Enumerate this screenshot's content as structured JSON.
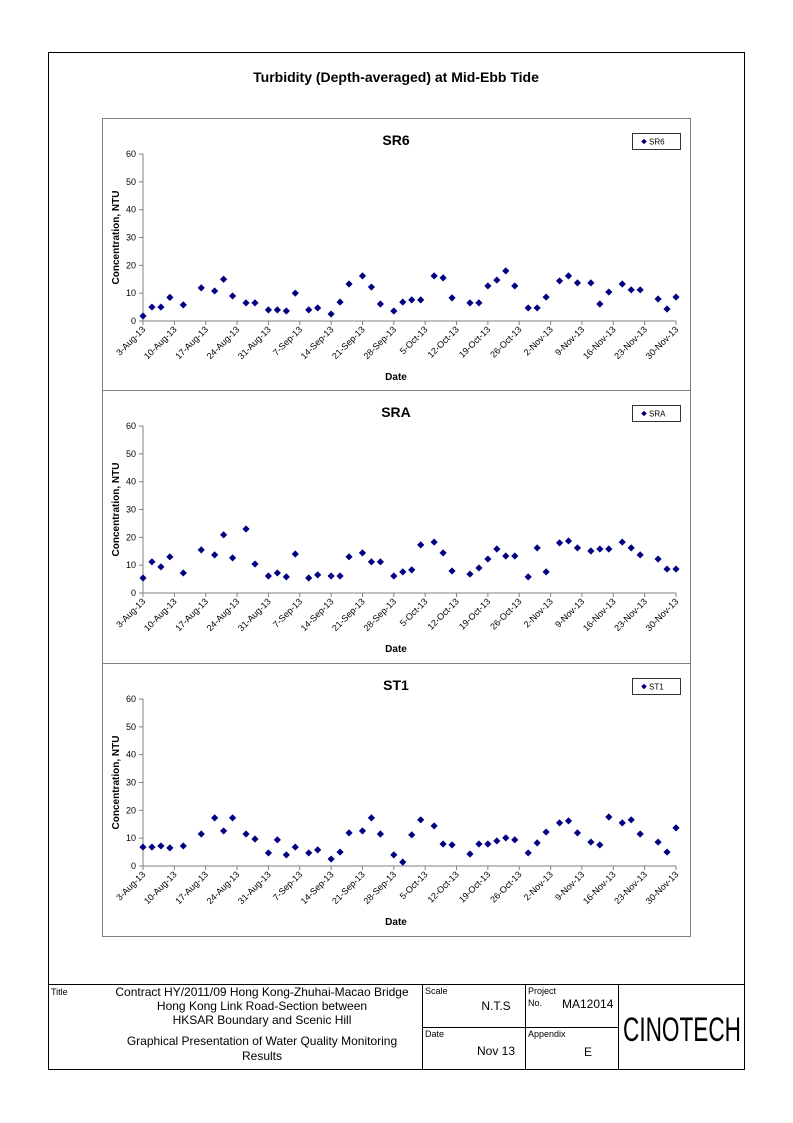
{
  "page_title": "Turbidity (Depth-averaged) at Mid-Ebb Tide",
  "chart_data": [
    {
      "type": "scatter",
      "title": "SR6",
      "xlabel": "Date",
      "ylabel": "Concentration, NTU",
      "legend": "upper right",
      "marker": "diamond",
      "xlim": [
        "2013-08-03",
        "2013-11-30"
      ],
      "ylim": [
        0,
        60
      ],
      "yticks": [
        0,
        10,
        20,
        30,
        40,
        50,
        60
      ],
      "xticks": [
        {
          "value": "2013-08-03",
          "label": "3-Aug-13"
        },
        {
          "value": "2013-08-10",
          "label": "10-Aug-13"
        },
        {
          "value": "2013-08-17",
          "label": "17-Aug-13"
        },
        {
          "value": "2013-08-24",
          "label": "24-Aug-13"
        },
        {
          "value": "2013-08-31",
          "label": "31-Aug-13"
        },
        {
          "value": "2013-09-07",
          "label": "7-Sep-13"
        },
        {
          "value": "2013-09-14",
          "label": "14-Sep-13"
        },
        {
          "value": "2013-09-21",
          "label": "21-Sep-13"
        },
        {
          "value": "2013-09-28",
          "label": "28-Sep-13"
        },
        {
          "value": "2013-10-05",
          "label": "5-Oct-13"
        },
        {
          "value": "2013-10-12",
          "label": "12-Oct-13"
        },
        {
          "value": "2013-10-19",
          "label": "19-Oct-13"
        },
        {
          "value": "2013-10-26",
          "label": "26-Oct-13"
        },
        {
          "value": "2013-11-02",
          "label": "2-Nov-13"
        },
        {
          "value": "2013-11-09",
          "label": "9-Nov-13"
        },
        {
          "value": "2013-11-16",
          "label": "16-Nov-13"
        },
        {
          "value": "2013-11-23",
          "label": "23-Nov-13"
        },
        {
          "value": "2013-11-30",
          "label": "30-Nov-13"
        }
      ],
      "x": [
        "2013-08-03",
        "2013-08-05",
        "2013-08-07",
        "2013-08-09",
        "2013-08-12",
        "2013-08-16",
        "2013-08-19",
        "2013-08-21",
        "2013-08-23",
        "2013-08-26",
        "2013-08-28",
        "2013-08-31",
        "2013-09-02",
        "2013-09-04",
        "2013-09-06",
        "2013-09-09",
        "2013-09-11",
        "2013-09-14",
        "2013-09-16",
        "2013-09-18",
        "2013-09-21",
        "2013-09-23",
        "2013-09-25",
        "2013-09-28",
        "2013-09-30",
        "2013-10-02",
        "2013-10-04",
        "2013-10-07",
        "2013-10-09",
        "2013-10-11",
        "2013-10-15",
        "2013-10-17",
        "2013-10-19",
        "2013-10-21",
        "2013-10-23",
        "2013-10-25",
        "2013-10-28",
        "2013-10-30",
        "2013-11-01",
        "2013-11-04",
        "2013-11-06",
        "2013-11-08",
        "2013-11-11",
        "2013-11-13",
        "2013-11-15",
        "2013-11-18",
        "2013-11-20",
        "2013-11-22",
        "2013-11-26",
        "2013-11-28",
        "2013-11-30"
      ],
      "series": [
        {
          "name": "SR6",
          "color": "#000080",
          "values": [
            1.8,
            5,
            5,
            8.5,
            5.8,
            11.9,
            10.8,
            15,
            9,
            6.5,
            6.5,
            4,
            4,
            3.6,
            10,
            4,
            4.7,
            2.5,
            6.8,
            13.3,
            16.2,
            12.2,
            6.1,
            3.6,
            6.8,
            7.6,
            7.6,
            16.2,
            15.5,
            8.3,
            6.5,
            6.5,
            12.6,
            14.7,
            18,
            12.6,
            4.7,
            4.7,
            8.6,
            14.4,
            16.2,
            13.7,
            13.7,
            6.1,
            10.4,
            13.3,
            11.2,
            11.2,
            7.9,
            4.3,
            8.6
          ]
        }
      ]
    },
    {
      "type": "scatter",
      "title": "SRA",
      "xlabel": "Date",
      "ylabel": "Concentration, NTU",
      "legend": "upper right",
      "marker": "diamond",
      "xlim": [
        "2013-08-03",
        "2013-11-30"
      ],
      "ylim": [
        0,
        60
      ],
      "yticks": [
        0,
        10,
        20,
        30,
        40,
        50,
        60
      ],
      "xticks": [
        {
          "value": "2013-08-03",
          "label": "3-Aug-13"
        },
        {
          "value": "2013-08-10",
          "label": "10-Aug-13"
        },
        {
          "value": "2013-08-17",
          "label": "17-Aug-13"
        },
        {
          "value": "2013-08-24",
          "label": "24-Aug-13"
        },
        {
          "value": "2013-08-31",
          "label": "31-Aug-13"
        },
        {
          "value": "2013-09-07",
          "label": "7-Sep-13"
        },
        {
          "value": "2013-09-14",
          "label": "14-Sep-13"
        },
        {
          "value": "2013-09-21",
          "label": "21-Sep-13"
        },
        {
          "value": "2013-09-28",
          "label": "28-Sep-13"
        },
        {
          "value": "2013-10-05",
          "label": "5-Oct-13"
        },
        {
          "value": "2013-10-12",
          "label": "12-Oct-13"
        },
        {
          "value": "2013-10-19",
          "label": "19-Oct-13"
        },
        {
          "value": "2013-10-26",
          "label": "26-Oct-13"
        },
        {
          "value": "2013-11-02",
          "label": "2-Nov-13"
        },
        {
          "value": "2013-11-09",
          "label": "9-Nov-13"
        },
        {
          "value": "2013-11-16",
          "label": "16-Nov-13"
        },
        {
          "value": "2013-11-23",
          "label": "23-Nov-13"
        },
        {
          "value": "2013-11-30",
          "label": "30-Nov-13"
        }
      ],
      "x": [
        "2013-08-03",
        "2013-08-05",
        "2013-08-07",
        "2013-08-09",
        "2013-08-12",
        "2013-08-16",
        "2013-08-19",
        "2013-08-21",
        "2013-08-23",
        "2013-08-26",
        "2013-08-28",
        "2013-08-31",
        "2013-09-02",
        "2013-09-04",
        "2013-09-06",
        "2013-09-09",
        "2013-09-11",
        "2013-09-14",
        "2013-09-16",
        "2013-09-18",
        "2013-09-21",
        "2013-09-23",
        "2013-09-25",
        "2013-09-28",
        "2013-09-30",
        "2013-10-02",
        "2013-10-04",
        "2013-10-07",
        "2013-10-09",
        "2013-10-11",
        "2013-10-15",
        "2013-10-17",
        "2013-10-19",
        "2013-10-21",
        "2013-10-23",
        "2013-10-25",
        "2013-10-28",
        "2013-10-30",
        "2013-11-01",
        "2013-11-04",
        "2013-11-06",
        "2013-11-08",
        "2013-11-11",
        "2013-11-13",
        "2013-11-15",
        "2013-11-18",
        "2013-11-20",
        "2013-11-22",
        "2013-11-26",
        "2013-11-28",
        "2013-11-30"
      ],
      "series": [
        {
          "name": "SRA",
          "color": "#000080",
          "values": [
            5.4,
            11.2,
            9.4,
            13,
            7.2,
            15.5,
            13.7,
            20.9,
            12.6,
            23,
            10.4,
            6.1,
            7.2,
            5.8,
            14,
            5.4,
            6.5,
            6.1,
            6.1,
            13,
            14.4,
            11.2,
            11.2,
            6.1,
            7.6,
            8.3,
            17.3,
            18.3,
            14.4,
            7.9,
            6.8,
            9,
            12.2,
            15.8,
            13.3,
            13.3,
            5.8,
            16.2,
            7.6,
            18,
            18.7,
            16.2,
            15.1,
            15.8,
            15.8,
            18.3,
            16.2,
            13.7,
            12.2,
            8.6,
            8.6
          ]
        }
      ]
    },
    {
      "type": "scatter",
      "title": "ST1",
      "xlabel": "Date",
      "ylabel": "Concentration, NTU",
      "legend": "upper right",
      "marker": "diamond",
      "xlim": [
        "2013-08-03",
        "2013-11-30"
      ],
      "ylim": [
        0,
        60
      ],
      "yticks": [
        0,
        10,
        20,
        30,
        40,
        50,
        60
      ],
      "xticks": [
        {
          "value": "2013-08-03",
          "label": "3-Aug-13"
        },
        {
          "value": "2013-08-10",
          "label": "10-Aug-13"
        },
        {
          "value": "2013-08-17",
          "label": "17-Aug-13"
        },
        {
          "value": "2013-08-24",
          "label": "24-Aug-13"
        },
        {
          "value": "2013-08-31",
          "label": "31-Aug-13"
        },
        {
          "value": "2013-09-07",
          "label": "7-Sep-13"
        },
        {
          "value": "2013-09-14",
          "label": "14-Sep-13"
        },
        {
          "value": "2013-09-21",
          "label": "21-Sep-13"
        },
        {
          "value": "2013-09-28",
          "label": "28-Sep-13"
        },
        {
          "value": "2013-10-05",
          "label": "5-Oct-13"
        },
        {
          "value": "2013-10-12",
          "label": "12-Oct-13"
        },
        {
          "value": "2013-10-19",
          "label": "19-Oct-13"
        },
        {
          "value": "2013-10-26",
          "label": "26-Oct-13"
        },
        {
          "value": "2013-11-02",
          "label": "2-Nov-13"
        },
        {
          "value": "2013-11-09",
          "label": "9-Nov-13"
        },
        {
          "value": "2013-11-16",
          "label": "16-Nov-13"
        },
        {
          "value": "2013-11-23",
          "label": "23-Nov-13"
        },
        {
          "value": "2013-11-30",
          "label": "30-Nov-13"
        }
      ],
      "x": [
        "2013-08-03",
        "2013-08-05",
        "2013-08-07",
        "2013-08-09",
        "2013-08-12",
        "2013-08-16",
        "2013-08-19",
        "2013-08-21",
        "2013-08-23",
        "2013-08-26",
        "2013-08-28",
        "2013-08-31",
        "2013-09-02",
        "2013-09-04",
        "2013-09-06",
        "2013-09-09",
        "2013-09-11",
        "2013-09-14",
        "2013-09-16",
        "2013-09-18",
        "2013-09-21",
        "2013-09-23",
        "2013-09-25",
        "2013-09-28",
        "2013-09-30",
        "2013-10-02",
        "2013-10-04",
        "2013-10-07",
        "2013-10-09",
        "2013-10-11",
        "2013-10-15",
        "2013-10-17",
        "2013-10-19",
        "2013-10-21",
        "2013-10-23",
        "2013-10-25",
        "2013-10-28",
        "2013-10-30",
        "2013-11-01",
        "2013-11-04",
        "2013-11-06",
        "2013-11-08",
        "2013-11-11",
        "2013-11-13",
        "2013-11-15",
        "2013-11-18",
        "2013-11-20",
        "2013-11-22",
        "2013-11-26",
        "2013-11-28",
        "2013-11-30"
      ],
      "series": [
        {
          "name": "ST1",
          "color": "#000080",
          "values": [
            6.8,
            6.8,
            7.2,
            6.5,
            7.2,
            11.5,
            17.3,
            12.6,
            17.3,
            11.5,
            9.7,
            4.7,
            9.4,
            4,
            6.8,
            4.7,
            5.8,
            2.5,
            5,
            11.9,
            12.6,
            17.3,
            11.5,
            4,
            1.4,
            11.2,
            16.6,
            14.4,
            7.9,
            7.6,
            4.3,
            7.9,
            7.9,
            9,
            10.1,
            9.4,
            4.7,
            8.3,
            12.2,
            15.5,
            16.2,
            11.9,
            8.6,
            7.6,
            17.6,
            15.5,
            16.6,
            11.5,
            8.6,
            5,
            13.7
          ]
        }
      ]
    }
  ],
  "title_block": {
    "title_label": "Title",
    "title_lines": [
      "Contract HY/2011/09 Hong Kong-Zhuhai-Macao Bridge",
      "Hong Kong Link Road-Section between",
      "HKSAR Boundary and Scenic Hill"
    ],
    "subtitle_lines": [
      "Graphical Presentation of Water Quality Monitoring",
      "Results"
    ],
    "scale_label": "Scale",
    "scale": "N.T.S",
    "date_label": "Date",
    "date": "Nov 13",
    "project_label": "Project",
    "no_label": "No.",
    "project_no": "MA12014",
    "appendix_label": "Appendix",
    "appendix": "E",
    "logo": "CINOTECH"
  }
}
